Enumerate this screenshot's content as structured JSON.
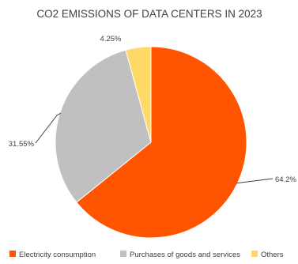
{
  "chart_data": {
    "type": "pie",
    "title": "CO2 EMISSIONS OF DATA CENTERS IN 2023",
    "start_angle_deg": 0,
    "direction": "clockwise",
    "legend_position": "bottom",
    "slices": [
      {
        "label": "Electricity consumption",
        "value": 64.2,
        "value_label": "64.2%",
        "color": "#FF5500"
      },
      {
        "label": "Purchases of goods and services",
        "value": 31.55,
        "value_label": "31.55%",
        "color": "#C0C0C0"
      },
      {
        "label": "Others",
        "value": 4.25,
        "value_label": "4.25%",
        "color": "#FFD966"
      }
    ]
  }
}
